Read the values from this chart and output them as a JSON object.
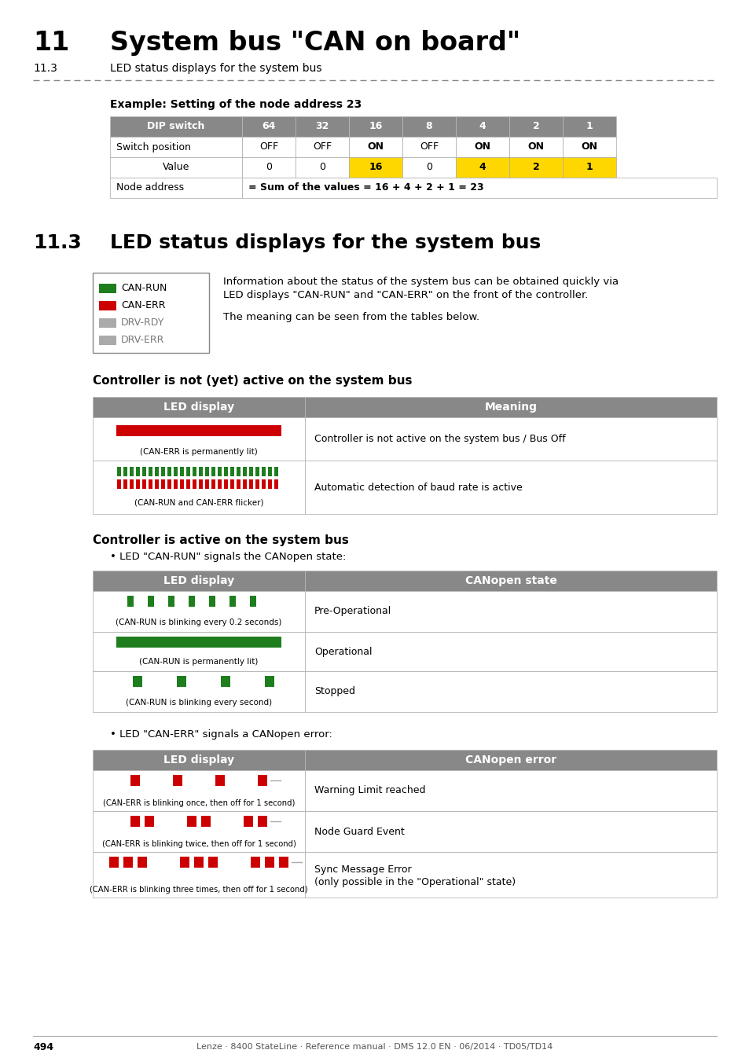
{
  "title_num": "11",
  "title_text": "System bus \"CAN on board\"",
  "subtitle_num": "11.3",
  "subtitle_text": "LED status displays for the system bus",
  "bg_color": "#ffffff",
  "dip_headers": [
    "DIP switch",
    "64",
    "32",
    "16",
    "8",
    "4",
    "2",
    "1"
  ],
  "switch_row": [
    "Switch position",
    "OFF",
    "OFF",
    "ON",
    "OFF",
    "ON",
    "ON",
    "ON"
  ],
  "value_row": [
    "Value",
    "0",
    "0",
    "16",
    "0",
    "4",
    "2",
    "1"
  ],
  "node_row_label": "Node address",
  "node_row_value": "= Sum of the values = 16 + 4 + 2 + 1 = 23",
  "yellow_highlight": "#FFD700",
  "section_num": "11.3",
  "section_title": "LED status displays for the system bus",
  "legend_items": [
    {
      "color": "#1e7e1e",
      "label": "CAN-RUN"
    },
    {
      "color": "#cc0000",
      "label": "CAN-ERR"
    },
    {
      "color": "#aaaaaa",
      "label": "DRV-RDY"
    },
    {
      "color": "#aaaaaa",
      "label": "DRV-ERR"
    }
  ],
  "info_text1": "Information about the status of the system bus can be obtained quickly via",
  "info_text2": "LED displays \"CAN-RUN\" and \"CAN-ERR\" on the front of the controller.",
  "info_text3": "The meaning can be seen from the tables below.",
  "not_active_title": "Controller is not (yet) active on the system bus",
  "active_title": "Controller is active on the system bus",
  "can_run_subtitle": "LED \"CAN-RUN\" signals the CANopen state:",
  "can_err_subtitle": "LED \"CAN-ERR\" signals a CANopen error:",
  "footer_text": "494",
  "footer_right": "Lenze · 8400 StateLine · Reference manual · DMS 12.0 EN · 06/2014 · TD05/TD14",
  "green_color": "#1e7e1e",
  "red_color": "#cc0000",
  "gray_color": "#aaaaaa",
  "header_gray": "#888888",
  "table_border": "#999999"
}
